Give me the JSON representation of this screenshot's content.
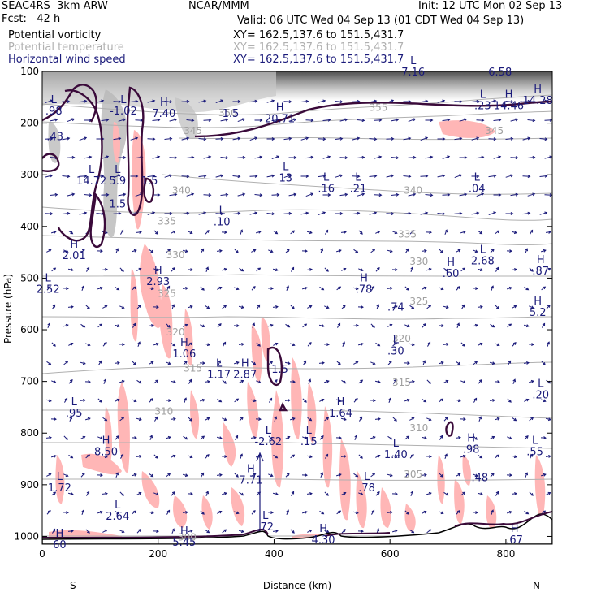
{
  "header": {
    "left_line1": "SEAC4RS  3km ARW",
    "left_line2": "Fcst:   42 h",
    "center_line1": "NCAR/MMM",
    "right_line1": "Init: 12 UTC Mon 02 Sep 13",
    "valid_line": "Valid: 06 UTC Wed 04 Sep 13 (01 CDT Wed 04 Sep 13)",
    "fields": [
      {
        "name": "Potential vorticity",
        "xy": "XY= 162.5,137.6 to 151.5,431.7",
        "color": "#000000"
      },
      {
        "name": "Potential temperature",
        "xy": "XY= 162.5,137.6 to 151.5,431.7",
        "color": "#b0b0b0"
      },
      {
        "name": "Horizontal wind speed",
        "xy": "XY= 162.5,137.6 to 151.5,431.7",
        "color": "#1a1a7a"
      }
    ]
  },
  "colors": {
    "pv_contour": "#3a0a3a",
    "theta_contour": "#b0b0b0",
    "wind_vectors": "#1a1a7a",
    "shading_pink": "#ffb6b6",
    "shading_gray": "#808080",
    "terrain": "#000000"
  },
  "chart_data": {
    "type": "cross-section",
    "xlabel": "Distance (km)",
    "ylabel": "Pressure (hPa)",
    "xlim": [
      0,
      880
    ],
    "ylim": [
      1015,
      100
    ],
    "x_ticks": [
      "0",
      "200",
      "400",
      "600",
      "800"
    ],
    "x_tick_values": [
      0,
      200,
      400,
      600,
      800
    ],
    "y_ticks": [
      "100",
      "200",
      "300",
      "400",
      "500",
      "600",
      "700",
      "800",
      "900",
      "1000"
    ],
    "y_tick_values": [
      100,
      200,
      300,
      400,
      500,
      600,
      700,
      800,
      900,
      1000
    ],
    "endpoint_labels": {
      "left": "S",
      "right": "N"
    },
    "theta_labels": [
      {
        "text": "355",
        "x": 580,
        "p": 170
      },
      {
        "text": "350",
        "x": 320,
        "p": 180
      },
      {
        "text": "345",
        "x": 260,
        "p": 215
      },
      {
        "text": "345",
        "x": 780,
        "p": 215
      },
      {
        "text": "340",
        "x": 240,
        "p": 330
      },
      {
        "text": "340",
        "x": 640,
        "p": 330
      },
      {
        "text": "335",
        "x": 215,
        "p": 390
      },
      {
        "text": "335",
        "x": 630,
        "p": 415
      },
      {
        "text": "330",
        "x": 230,
        "p": 455
      },
      {
        "text": "330",
        "x": 650,
        "p": 468
      },
      {
        "text": "325",
        "x": 215,
        "p": 530
      },
      {
        "text": "325",
        "x": 650,
        "p": 545
      },
      {
        "text": "320",
        "x": 230,
        "p": 605
      },
      {
        "text": "320",
        "x": 620,
        "p": 617
      },
      {
        "text": "315",
        "x": 260,
        "p": 675
      },
      {
        "text": "315",
        "x": 620,
        "p": 702
      },
      {
        "text": "310",
        "x": 210,
        "p": 758
      },
      {
        "text": "310",
        "x": 650,
        "p": 790
      },
      {
        "text": "305",
        "x": 640,
        "p": 880
      },
      {
        "text": "300",
        "x": 250,
        "p": 1002
      }
    ],
    "extrema_labels": [
      {
        "type": "L",
        "value": ".98",
        "x": 20,
        "p": 180
      },
      {
        "type": "L",
        "value": "-1.02",
        "x": 140,
        "p": 180
      },
      {
        "type": "H",
        "value": "7.40",
        "x": 210,
        "p": 185
      },
      {
        "type": "",
        "value": "1.5",
        "x": 325,
        "p": 185
      },
      {
        "type": "H",
        "value": "20.71",
        "x": 410,
        "p": 195
      },
      {
        "type": "L",
        "value": "7.16",
        "x": 640,
        "p": 105
      },
      {
        "type": "",
        "value": "6.58",
        "x": 790,
        "p": 105
      },
      {
        "type": "L",
        "value": ".23",
        "x": 760,
        "p": 170
      },
      {
        "type": "H",
        "value": "14.46",
        "x": 805,
        "p": 170
      },
      {
        "type": "H",
        "value": "14.28",
        "x": 855,
        "p": 160
      },
      {
        "type": ".43",
        "value": ".43",
        "x": 22,
        "p": 230
      },
      {
        "type": "L",
        "value": "14.72",
        "x": 85,
        "p": 315
      },
      {
        "type": "L",
        "value": "5.9",
        "x": 130,
        "p": 315
      },
      {
        "type": "",
        "value": "1.5",
        "x": 185,
        "p": 315
      },
      {
        "type": "L",
        "value": "13",
        "x": 420,
        "p": 310
      },
      {
        "type": "L",
        "value": ".16",
        "x": 490,
        "p": 330
      },
      {
        "type": "L",
        "value": ".21",
        "x": 545,
        "p": 330
      },
      {
        "type": "L",
        "value": ".04",
        "x": 750,
        "p": 330
      },
      {
        "type": "",
        "value": "1.5",
        "x": 130,
        "p": 360
      },
      {
        "type": "L",
        "value": ".10",
        "x": 310,
        "p": 395
      },
      {
        "type": "H",
        "value": "2.01",
        "x": 55,
        "p": 460
      },
      {
        "type": "L",
        "value": "2.52",
        "x": 10,
        "p": 525
      },
      {
        "type": "H",
        "value": "2.93",
        "x": 200,
        "p": 510
      },
      {
        "type": "H",
        "value": ".78",
        "x": 555,
        "p": 525
      },
      {
        "type": "H",
        "value": ".60",
        "x": 705,
        "p": 495
      },
      {
        "type": "L",
        "value": "2.68",
        "x": 760,
        "p": 470
      },
      {
        "type": "H",
        "value": ".87",
        "x": 860,
        "p": 490
      },
      {
        "type": ".74",
        "value": ".74",
        "x": 610,
        "p": 560
      },
      {
        "type": "H",
        "value": "5.2",
        "x": 855,
        "p": 570
      },
      {
        "type": "H",
        "value": "1.06",
        "x": 245,
        "p": 650
      },
      {
        "type": "L",
        "value": ".30",
        "x": 610,
        "p": 645
      },
      {
        "type": "L",
        "value": "1.17",
        "x": 305,
        "p": 690
      },
      {
        "type": "H",
        "value": "2.87",
        "x": 350,
        "p": 690
      },
      {
        "type": "",
        "value": "1.5",
        "x": 410,
        "p": 680
      },
      {
        "type": "L",
        "value": ".20",
        "x": 860,
        "p": 730
      },
      {
        "type": "L",
        "value": ".95",
        "x": 55,
        "p": 765
      },
      {
        "type": "H",
        "value": "1.64",
        "x": 515,
        "p": 765
      },
      {
        "type": "L",
        "value": "-2.62",
        "x": 390,
        "p": 820
      },
      {
        "type": "L",
        "value": ".15",
        "x": 460,
        "p": 820
      },
      {
        "type": "H",
        "value": "8.50",
        "x": 110,
        "p": 840
      },
      {
        "type": "L",
        "value": "1.40",
        "x": 610,
        "p": 845
      },
      {
        "type": "H",
        "value": ".98",
        "x": 740,
        "p": 835
      },
      {
        "type": "L",
        "value": ".55",
        "x": 850,
        "p": 840
      },
      {
        "type": "H",
        "value": "7.71",
        "x": 360,
        "p": 895
      },
      {
        "type": ".48",
        "value": ".48",
        "x": 755,
        "p": 890
      },
      {
        "type": "L",
        "value": "1.72",
        "x": 30,
        "p": 910
      },
      {
        "type": "L",
        "value": ".78",
        "x": 560,
        "p": 910
      },
      {
        "type": "L",
        "value": "2.64",
        "x": 130,
        "p": 965
      },
      {
        "type": "L",
        "value": ".72",
        "x": 385,
        "p": 985
      },
      {
        "type": "H",
        "value": "5.45",
        "x": 245,
        "p": 1015
      },
      {
        "type": "H",
        "value": "4.30",
        "x": 485,
        "p": 1010
      },
      {
        "type": "H",
        "value": "60",
        "x": 30,
        "p": 1020
      },
      {
        "type": "H",
        "value": ".67",
        "x": 815,
        "p": 1010
      }
    ]
  }
}
